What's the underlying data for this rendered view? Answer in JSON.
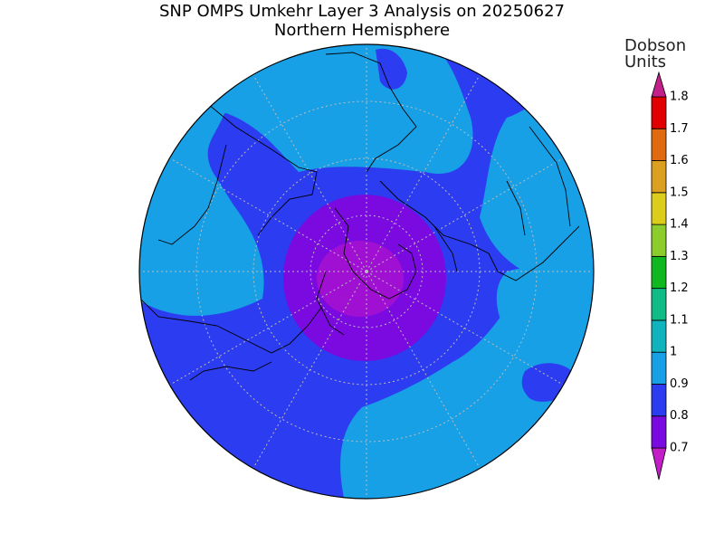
{
  "title": "SNP OMPS Umkehr Layer 3 Analysis on 20250627",
  "subtitle": "Northern Hemisphere",
  "colorbar": {
    "units": [
      "Dobson",
      "Units"
    ],
    "ticks": [
      0.7,
      0.8,
      0.9,
      1,
      1.1,
      1.2,
      1.3,
      1.4,
      1.5,
      1.6,
      1.7,
      1.8
    ],
    "colors": [
      "#c21ec8",
      "#7a0ae0",
      "#2c3cf0",
      "#18a0e6",
      "#10b4bc",
      "#10bc86",
      "#10b820",
      "#8ccc2c",
      "#dccc1c",
      "#dca020",
      "#e06a10",
      "#e00000",
      "#c4208a"
    ]
  }
}
